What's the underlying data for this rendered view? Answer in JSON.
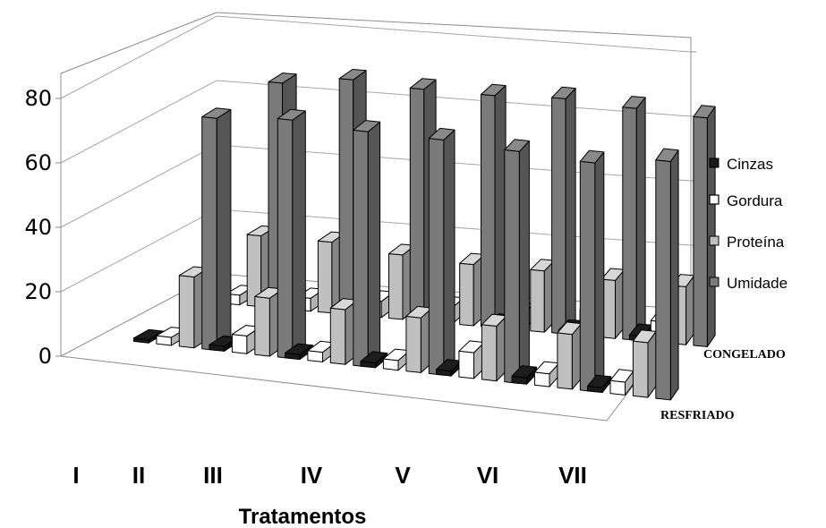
{
  "chart_data": {
    "type": "bar",
    "title": "",
    "xlabel": "Tratamentos",
    "ylabel": "",
    "ylim": [
      0,
      80
    ],
    "yticks": [
      "0",
      "20",
      "40",
      "60",
      "80"
    ],
    "categories": [
      "I",
      "II",
      "III",
      "IV",
      "V",
      "VI",
      "VII"
    ],
    "depth_groups": [
      "RESFRIADO",
      "CONGELADO"
    ],
    "legend": [
      "Cinzas",
      "Gordura",
      "Proteína",
      "Umidade"
    ],
    "colors": {
      "Cinzas": "#1a1a1a",
      "Gordura": "#ffffff",
      "Proteína": "#c0c0c0",
      "Umidade": "#7a7a7a"
    },
    "series": [
      {
        "name": "Cinzas",
        "RESFRIADO": [
          1.0,
          1.5,
          1.5,
          1.5,
          1.5,
          2.0,
          1.5
        ],
        "CONGELADO": [
          1.0,
          1.0,
          1.0,
          1.0,
          1.0,
          1.0,
          1.5
        ]
      },
      {
        "name": "Gordura",
        "RESFRIADO": [
          2.5,
          5.5,
          3.0,
          3.0,
          8.0,
          4.0,
          4.0
        ],
        "CONGELADO": [
          3.0,
          4.0,
          5.0,
          5.0,
          5.0,
          8.0,
          6.5
        ]
      },
      {
        "name": "Proteína",
        "RESFRIADO": [
          22.0,
          18.0,
          17.0,
          17.0,
          17.0,
          17.0,
          17.0
        ],
        "CONGELADO": [
          22.0,
          22.0,
          20.0,
          19.0,
          19.0,
          18.0,
          18.0
        ]
      },
      {
        "name": "Umidade",
        "RESFRIADO": [
          72.0,
          74.0,
          73.0,
          73.0,
          72.0,
          71.0,
          74.0
        ],
        "CONGELADO": [
          70.0,
          73.0,
          72.0,
          72.0,
          73.0,
          72.0,
          71.0
        ]
      }
    ]
  }
}
